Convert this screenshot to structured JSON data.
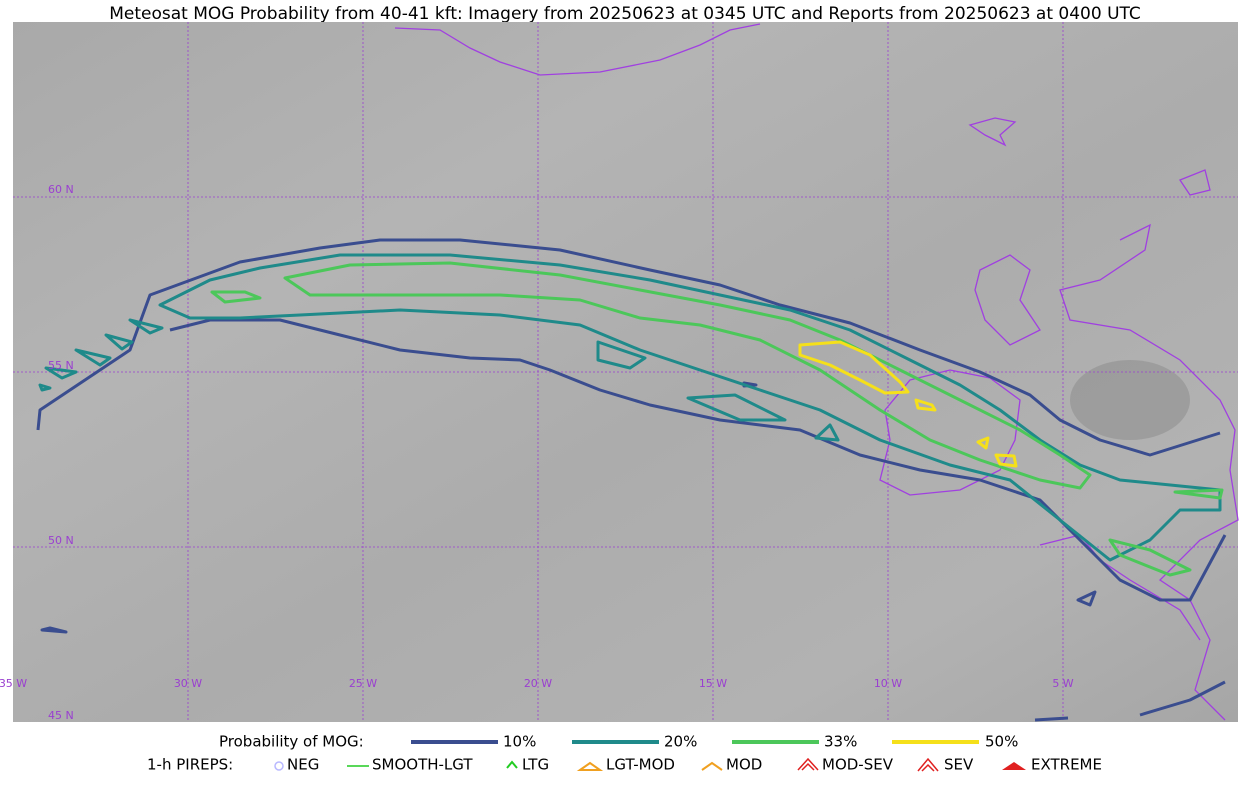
{
  "title": "Meteosat MOG Probability from 40-41 kft: Imagery from 20250623 at 0345 UTC and Reports from 20250623 at 0400 UTC",
  "map": {
    "lon_labels": [
      "35 W",
      "30 W",
      "25 W",
      "20 W",
      "15 W",
      "10 W",
      "5 W"
    ],
    "lat_labels": [
      "60 N",
      "55 N",
      "50 N",
      "45 N"
    ]
  },
  "legend": {
    "probability": {
      "label": "Probability of MOG:",
      "items": [
        "10%",
        "20%",
        "33%",
        "50%"
      ]
    },
    "pireps": {
      "label": "1-h PIREPS:",
      "items": [
        "NEG",
        "SMOOTH-LGT",
        "LTG",
        "LGT-MOD",
        "MOD",
        "MOD-SEV",
        "SEV",
        "EXTREME"
      ]
    }
  }
}
